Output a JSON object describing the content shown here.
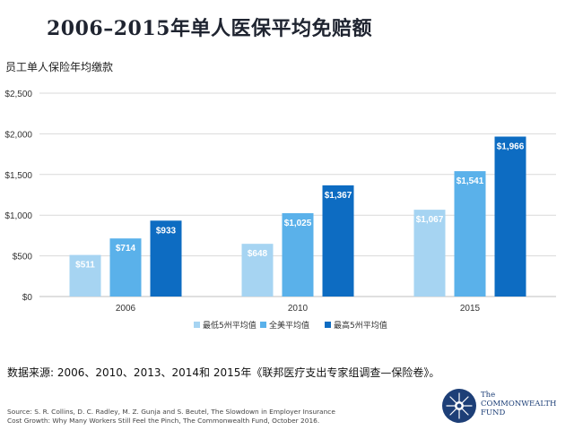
{
  "title": "2006–2015年单人医保平均免赔额",
  "subtitle": "员工单人保险年均缴款",
  "colors": {
    "low": "#a6d4f2",
    "avg": "#5ab1ea",
    "high": "#0d6cc2",
    "axis": "#bfbfbf",
    "grid": "#d9d9d9"
  },
  "chart_data": {
    "type": "bar",
    "categories": [
      "2006",
      "2010",
      "2015"
    ],
    "series": [
      {
        "name": "最低5州平均值",
        "values": [
          511,
          648,
          1067
        ],
        "labels": [
          "$511",
          "$648",
          "$1,067"
        ]
      },
      {
        "name": "全美平均值",
        "values": [
          714,
          1025,
          1541
        ],
        "labels": [
          "$714",
          "$1,025",
          "$1,541"
        ]
      },
      {
        "name": "最高5州平均值",
        "values": [
          933,
          1367,
          1966
        ],
        "labels": [
          "$933",
          "$1,367",
          "$1,966"
        ]
      }
    ],
    "ylim": [
      0,
      2500
    ],
    "yticks": [
      0,
      500,
      1000,
      1500,
      2000,
      2500
    ],
    "ytick_labels": [
      "$0",
      "$500",
      "$1,000",
      "$1,500",
      "$2,000",
      "$2,500"
    ],
    "legend_position": "bottom",
    "grid": true
  },
  "data_source": "数据来源: 2006、2010、2013、2014和 2015年《联邦医疗支出专家组调查—保险卷》。",
  "citation": {
    "line1": "Source: S. R. Collins, D. C. Radley, M. Z. Gunja and S. Beutel, The Slowdown in Employer Insurance",
    "line2": "Cost Growth: Why Many Workers Still Feel the Pinch, The Commonwealth Fund, October 2016."
  },
  "org": {
    "line1": "The",
    "line2": "COMMONWEALTH",
    "line3": "FUND"
  }
}
